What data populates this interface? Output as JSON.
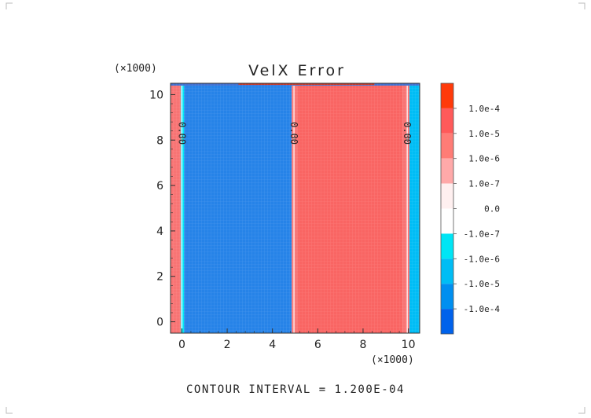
{
  "chart_data": {
    "type": "heatmap",
    "title": "VelX Error",
    "y_scale_label": "(×1000)",
    "x_scale_label": "(×1000)",
    "footer": "CONTOUR INTERVAL = 1.200E-04",
    "xlim": [
      -0.5,
      10.5
    ],
    "ylim": [
      -0.5,
      10.5
    ],
    "x_ticks": [
      "0",
      "2",
      "4",
      "6",
      "8",
      "10"
    ],
    "x_tick_values": [
      0,
      2,
      4,
      6,
      8,
      10
    ],
    "y_ticks": [
      "0",
      "2",
      "4",
      "6",
      "8",
      "10"
    ],
    "y_tick_values": [
      0,
      2,
      4,
      6,
      8,
      10
    ],
    "bands": [
      {
        "x0": -0.5,
        "x1": -0.05,
        "level": "1.0e-7 to 1.0e-6"
      },
      {
        "x0": -0.05,
        "x1": 0.1,
        "level": "-1.0e-7 to -1.0e-6"
      },
      {
        "x0": 0.1,
        "x1": 4.85,
        "level": "-1.0e-5 to -1.0e-4"
      },
      {
        "x0": 4.85,
        "x1": 5.1,
        "level": "1.0e-7 to 1.0e-6"
      },
      {
        "x0": 5.1,
        "x1": 9.75,
        "level": "1.0e-6 to 1.0e-5"
      },
      {
        "x0": 9.75,
        "x1": 10.05,
        "level": "1.0e-7 to 1.0e-6"
      },
      {
        "x0": 10.05,
        "x1": 10.5,
        "level": "-1.0e-6 to -1.0e-5"
      }
    ],
    "contour_labels": [
      {
        "x": 0.0,
        "y": 8.3,
        "text": "0.00"
      },
      {
        "x": 4.95,
        "y": 8.3,
        "text": "0.00"
      },
      {
        "x": 9.95,
        "y": 8.3,
        "text": "0.00"
      }
    ],
    "colorbar": {
      "colors": [
        "#ff3a0a",
        "#ff5a5a",
        "#ff7c76",
        "#ffa9a9",
        "#fff0f0",
        "#ffffff",
        "#00e5f5",
        "#00bdf5",
        "#008ff0",
        "#0062eb"
      ],
      "labels": [
        "1.0e-4",
        "1.0e-5",
        "1.0e-6",
        "1.0e-7",
        "0.0",
        "-1.0e-7",
        "-1.0e-6",
        "-1.0e-5",
        "-1.0e-4"
      ]
    }
  }
}
